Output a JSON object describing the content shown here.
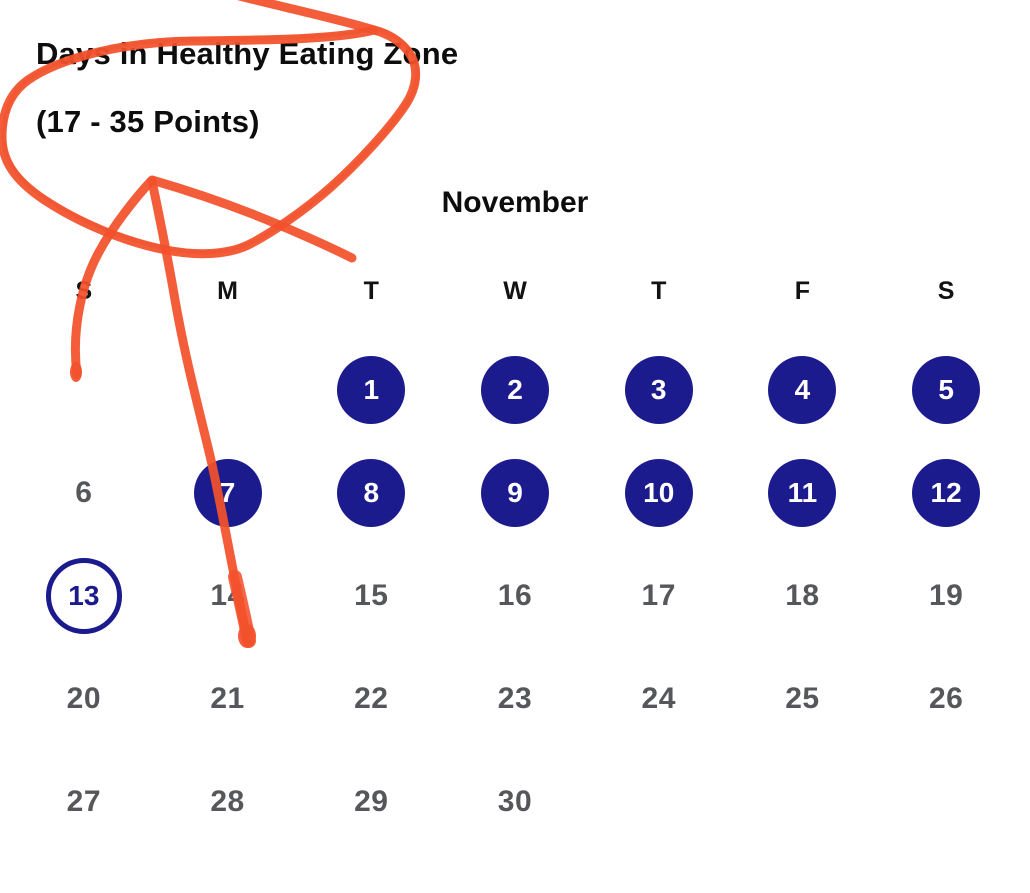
{
  "header": {
    "title_line1": "Days in Healthy Eating Zone",
    "title_line2": "(17 - 35 Points)"
  },
  "calendar": {
    "month": "November",
    "weekdays": [
      "S",
      "M",
      "T",
      "W",
      "T",
      "F",
      "S"
    ],
    "weeks": [
      [
        {
          "label": "",
          "state": "empty"
        },
        {
          "label": "",
          "state": "empty"
        },
        {
          "label": "1",
          "state": "filled"
        },
        {
          "label": "2",
          "state": "filled"
        },
        {
          "label": "3",
          "state": "filled"
        },
        {
          "label": "4",
          "state": "filled"
        },
        {
          "label": "5",
          "state": "filled"
        }
      ],
      [
        {
          "label": "6",
          "state": "plain"
        },
        {
          "label": "7",
          "state": "filled"
        },
        {
          "label": "8",
          "state": "filled"
        },
        {
          "label": "9",
          "state": "filled"
        },
        {
          "label": "10",
          "state": "filled"
        },
        {
          "label": "11",
          "state": "filled"
        },
        {
          "label": "12",
          "state": "filled"
        }
      ],
      [
        {
          "label": "13",
          "state": "outlined"
        },
        {
          "label": "14",
          "state": "plain"
        },
        {
          "label": "15",
          "state": "plain"
        },
        {
          "label": "16",
          "state": "plain"
        },
        {
          "label": "17",
          "state": "plain"
        },
        {
          "label": "18",
          "state": "plain"
        },
        {
          "label": "19",
          "state": "plain"
        }
      ],
      [
        {
          "label": "20",
          "state": "plain"
        },
        {
          "label": "21",
          "state": "plain"
        },
        {
          "label": "22",
          "state": "plain"
        },
        {
          "label": "23",
          "state": "plain"
        },
        {
          "label": "24",
          "state": "plain"
        },
        {
          "label": "25",
          "state": "plain"
        },
        {
          "label": "26",
          "state": "plain"
        }
      ],
      [
        {
          "label": "27",
          "state": "plain"
        },
        {
          "label": "28",
          "state": "plain"
        },
        {
          "label": "29",
          "state": "plain"
        },
        {
          "label": "30",
          "state": "plain"
        },
        {
          "label": "",
          "state": "empty"
        },
        {
          "label": "",
          "state": "empty"
        },
        {
          "label": "",
          "state": "empty"
        }
      ]
    ]
  },
  "annotation": {
    "type": "hand-drawn-scribble",
    "description": "orange circle around title with arrow pointing down into calendar"
  },
  "colors": {
    "navy": "#1B1B8E",
    "date_gray": "#56575B",
    "orange": "#F2512B",
    "ink": "#0D0D0D"
  }
}
